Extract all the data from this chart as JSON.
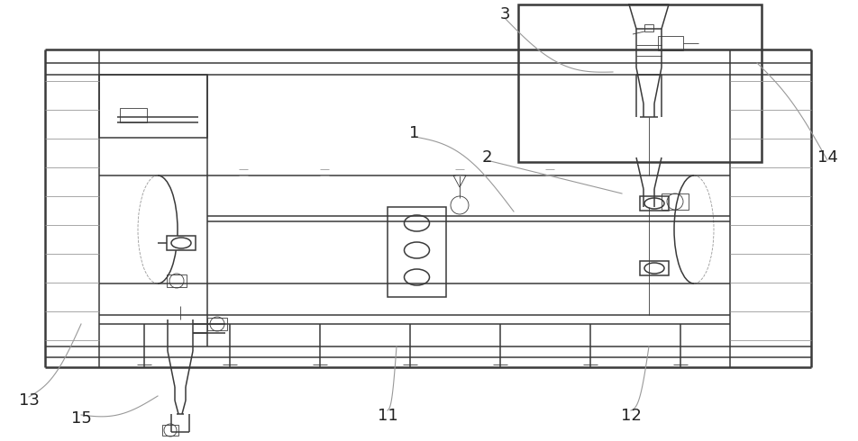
{
  "bg_color": "#ffffff",
  "lc": "#3a3a3a",
  "lc_gray": "#999999",
  "lw_thick": 1.8,
  "lw_med": 1.1,
  "lw_thin": 0.6,
  "fig_w": 9.53,
  "fig_h": 4.9
}
